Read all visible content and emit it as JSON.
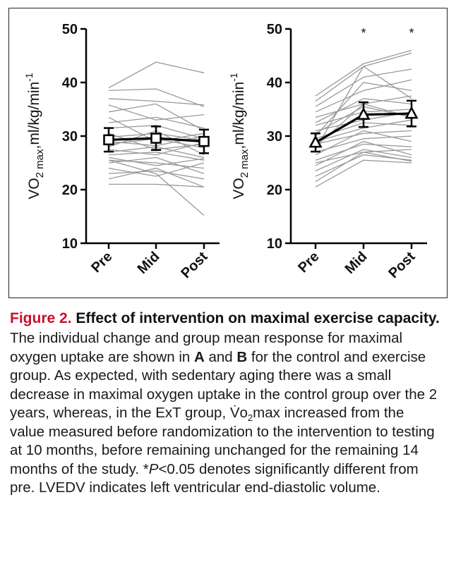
{
  "chart_data": [
    {
      "type": "line",
      "panel": "A",
      "categories": [
        "Pre",
        "Mid",
        "Post"
      ],
      "ylabel": {
        "main": "VO",
        "sub1": "2",
        "sub2": " max",
        "rest": ",ml/kg/min",
        "sup": "-1"
      },
      "ylim": [
        10,
        50
      ],
      "yticks": [
        "10",
        "20",
        "30",
        "40",
        "50"
      ],
      "grid": false,
      "individual_series": [
        [
          39.0,
          43.8,
          41.8
        ],
        [
          38.5,
          38.8,
          35.5
        ],
        [
          37.0,
          36.5,
          35.8
        ],
        [
          35.8,
          33.0,
          34.0
        ],
        [
          34.5,
          36.0,
          31.0
        ],
        [
          33.5,
          29.0,
          30.5
        ],
        [
          32.5,
          33.5,
          31.5
        ],
        [
          31.5,
          32.0,
          29.5
        ],
        [
          30.5,
          27.5,
          28.5
        ],
        [
          29.8,
          30.5,
          29.2
        ],
        [
          29.0,
          28.2,
          30.0
        ],
        [
          28.5,
          29.5,
          27.8
        ],
        [
          28.0,
          31.0,
          26.5
        ],
        [
          27.5,
          26.5,
          28.8
        ],
        [
          27.0,
          28.0,
          26.0
        ],
        [
          26.5,
          27.0,
          25.5
        ],
        [
          26.0,
          24.5,
          25.8
        ],
        [
          25.5,
          25.0,
          24.0
        ],
        [
          25.0,
          26.0,
          23.0
        ],
        [
          24.0,
          22.5,
          25.0
        ],
        [
          23.0,
          23.5,
          22.0
        ],
        [
          22.0,
          24.0,
          20.5
        ],
        [
          21.0,
          21.0,
          20.5
        ],
        [
          25.5,
          23.0,
          15.2
        ]
      ],
      "mean_series": {
        "marker": "square",
        "values": [
          29.3,
          29.6,
          29.0
        ],
        "error": [
          2.2,
          2.2,
          2.2
        ]
      },
      "annotations": [
        "",
        "",
        ""
      ]
    },
    {
      "type": "line",
      "panel": "B",
      "categories": [
        "Pre",
        "Mid",
        "Post"
      ],
      "ylabel": {
        "main": "VO",
        "sub1": "2",
        "sub2": " max",
        "rest": ",ml/kg/min",
        "sup": "-1"
      },
      "ylim": [
        10,
        50
      ],
      "yticks": [
        "10",
        "20",
        "30",
        "40",
        "50"
      ],
      "grid": false,
      "individual_series": [
        [
          37.5,
          43.5,
          46.0
        ],
        [
          36.5,
          43.0,
          45.5
        ],
        [
          35.5,
          41.0,
          42.5
        ],
        [
          34.5,
          38.5,
          40.5
        ],
        [
          33.5,
          36.0,
          37.5
        ],
        [
          32.5,
          37.0,
          36.0
        ],
        [
          32.0,
          34.5,
          35.0
        ],
        [
          31.0,
          33.0,
          34.5
        ],
        [
          30.5,
          35.5,
          33.5
        ],
        [
          29.5,
          32.5,
          32.0
        ],
        [
          29.0,
          31.5,
          33.0
        ],
        [
          28.5,
          30.5,
          31.0
        ],
        [
          28.0,
          36.0,
          33.5
        ],
        [
          27.0,
          29.5,
          30.0
        ],
        [
          26.5,
          31.0,
          29.0
        ],
        [
          25.5,
          28.5,
          28.0
        ],
        [
          25.0,
          27.0,
          27.5
        ],
        [
          24.5,
          29.0,
          26.5
        ],
        [
          23.5,
          27.5,
          26.0
        ],
        [
          22.5,
          26.5,
          25.5
        ],
        [
          21.5,
          27.0,
          25.3
        ],
        [
          20.5,
          25.5,
          25.0
        ],
        [
          30.0,
          40.0,
          38.5
        ],
        [
          27.5,
          43.0,
          37.0
        ]
      ],
      "mean_series": {
        "marker": "triangle",
        "values": [
          28.8,
          34.0,
          34.2
        ],
        "error": [
          1.7,
          2.3,
          2.4
        ]
      },
      "annotations": [
        "",
        "*",
        "*"
      ]
    }
  ],
  "caption": {
    "figure_label": "Figure 2.",
    "title": " Effect of intervention on maximal exercise capacity.",
    "body_part1": "The individual change and group mean response for maximal oxygen uptake are shown in ",
    "bold_a": "A",
    "body_part2": " and ",
    "bold_b": "B",
    "body_part3": " for the control and exercise group. As expected, with sedentary aging there was a small decrease in maximal oxygen uptake in the control group over the 2 years, whereas, in the ExT group, V̇o",
    "body_sub": "2",
    "body_part4": "max increased from the value measured before randomization to the intervention to testing at 10 months, before remaining unchanged for the remaining 14 months of the study. *",
    "italic_p": "P",
    "body_part5": "<0.05 denotes significantly different from pre. LVEDV indicates left ventricular end-diastolic volume."
  },
  "colors": {
    "individual_line": "#9a9a9a",
    "mean_line": "#000000",
    "figure_label": "#c8102e"
  }
}
